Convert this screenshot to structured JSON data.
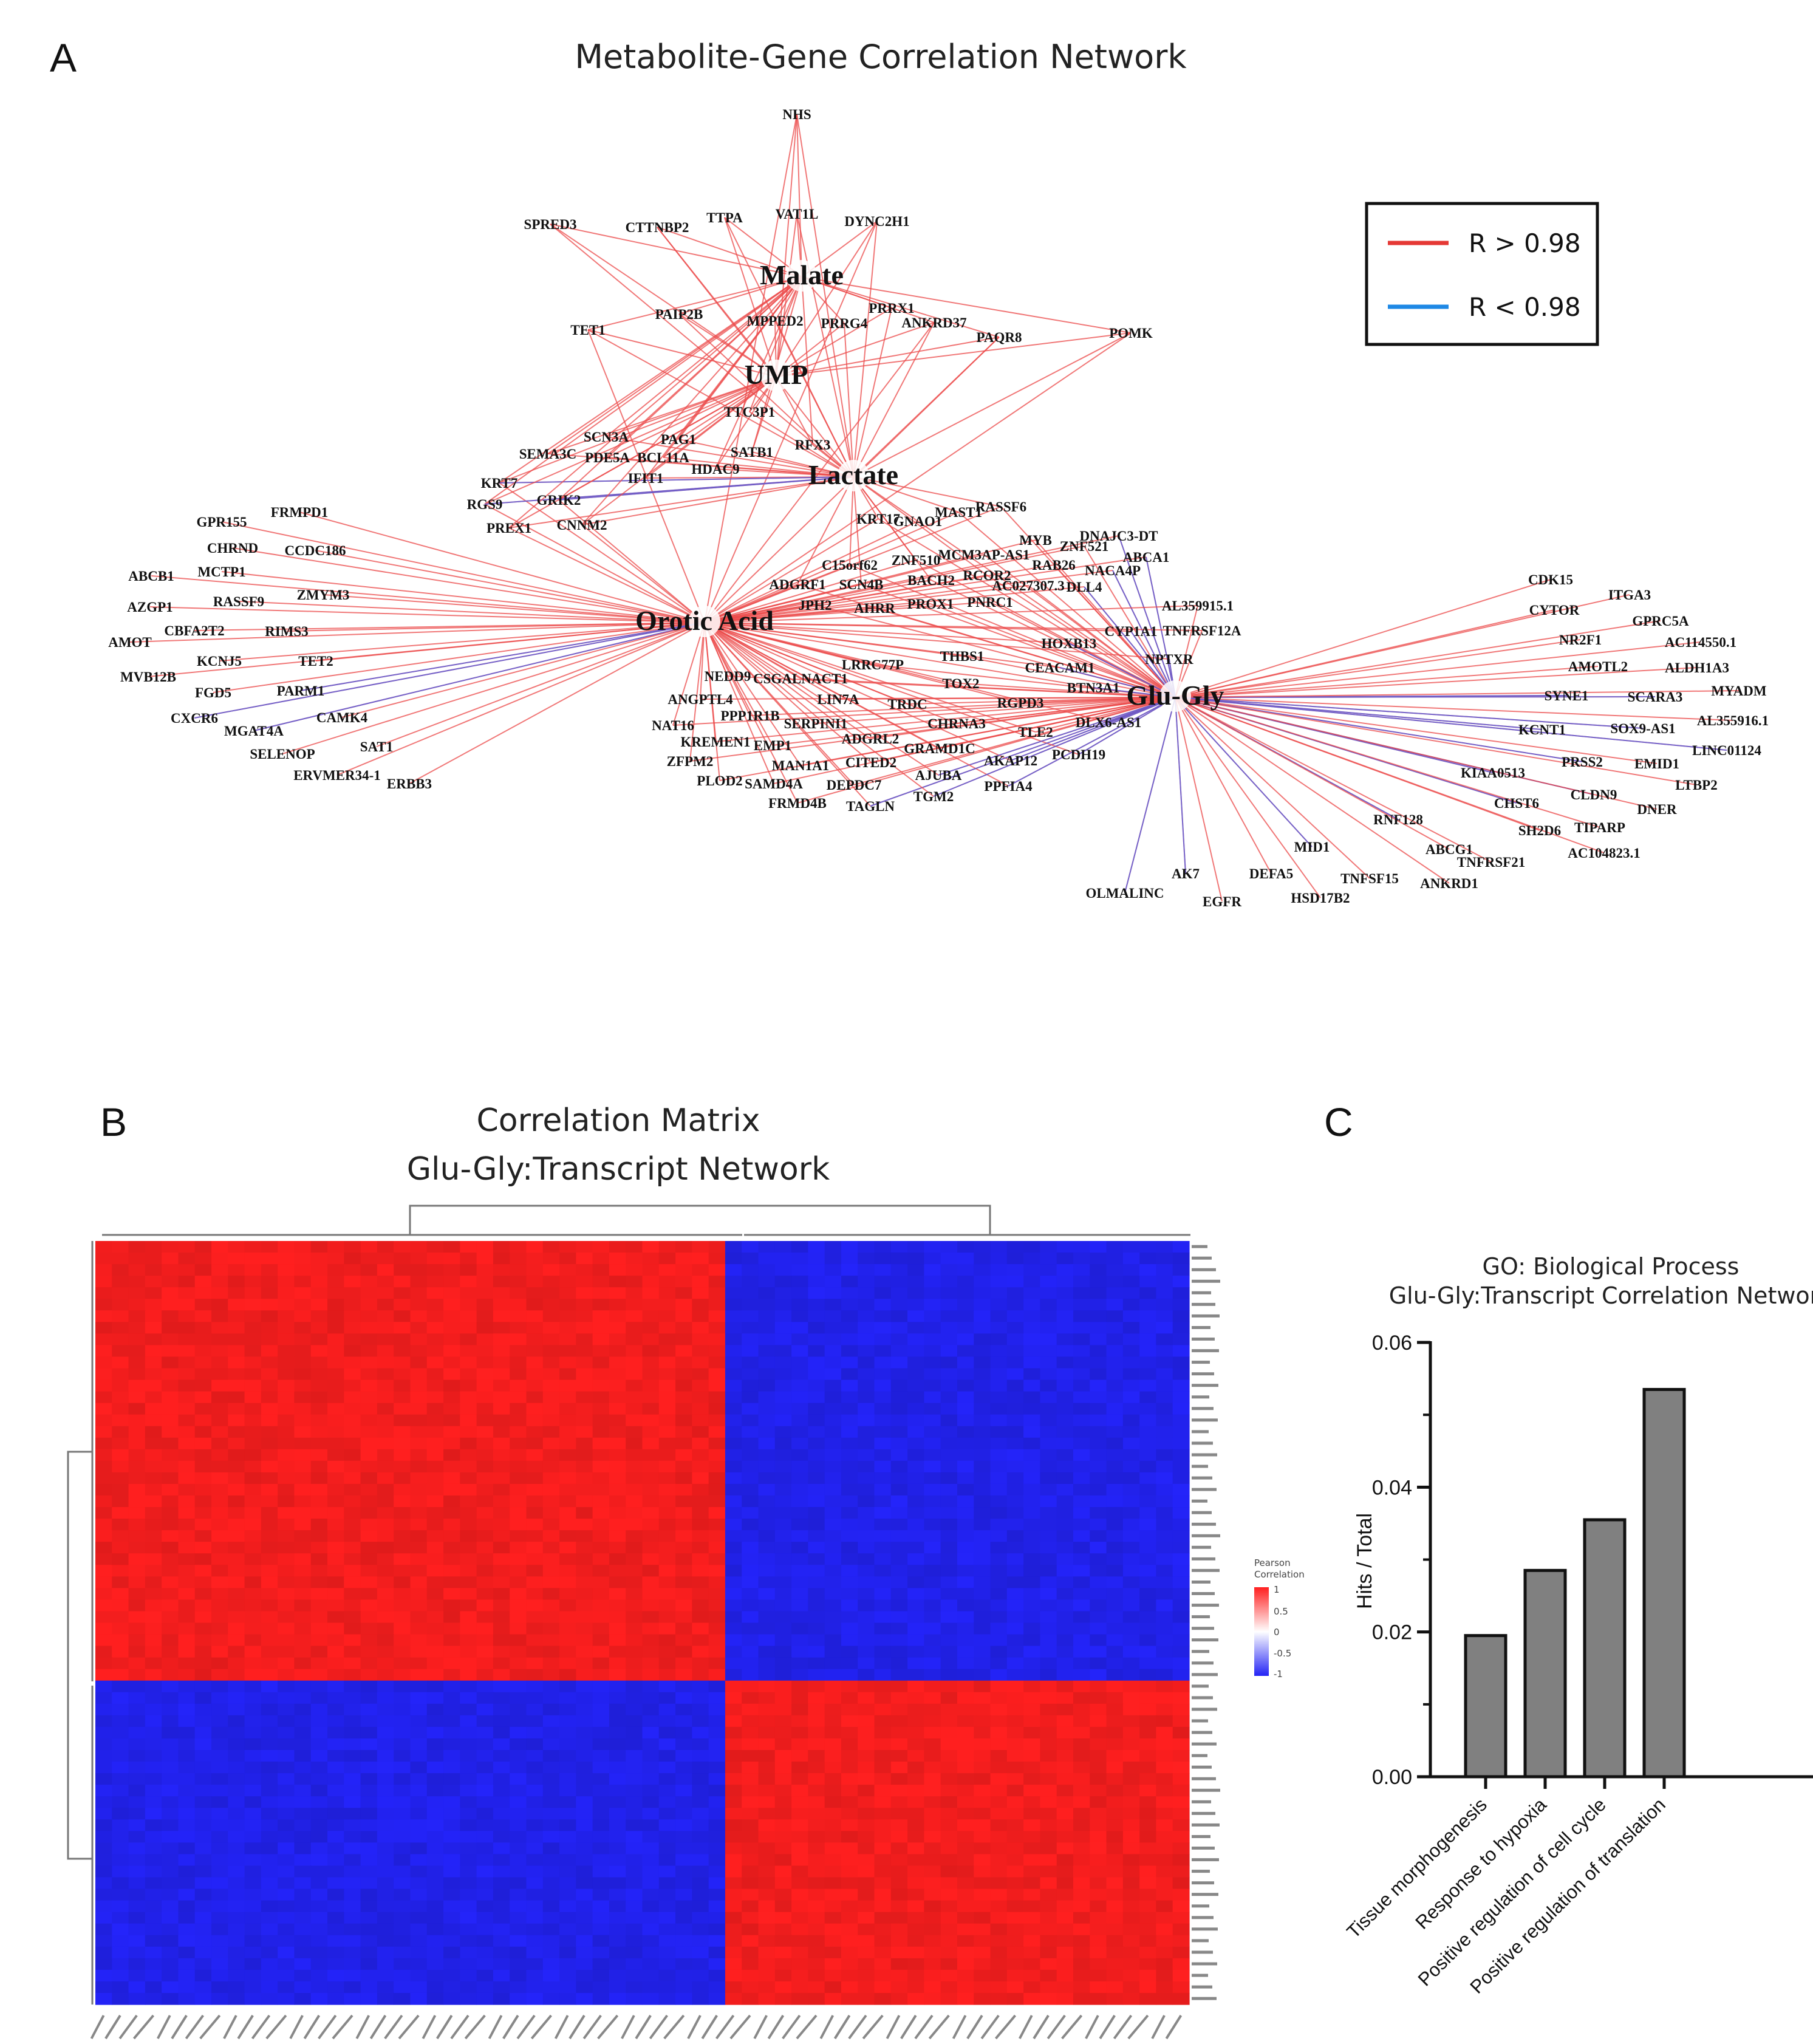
{
  "panels": {
    "a": "A",
    "b": "B",
    "c": "C"
  },
  "network": {
    "title": "Metabolite-Gene Correlation Network",
    "legend": {
      "pos_label": "R > 0.98",
      "neg_label": "R < 0.98",
      "pos_color": "#e53935",
      "neg_color": "#1e88e5"
    },
    "hubs": [
      "Malate",
      "UMP",
      "Lactate",
      "Orotic Acid",
      "Glu-Gly"
    ],
    "genes_top": [
      "NHS",
      "SPRED3",
      "CTTNBP2",
      "TTPA",
      "VAT1L",
      "DYNC2H1",
      "PAIP2B",
      "MPPED2",
      "PRRG4",
      "PRRX1",
      "ANKRD37",
      "PAQR8",
      "TET1",
      "POMK",
      "TTC3P1",
      "SCN3A",
      "PAG1",
      "SEMA3C",
      "PDE5A",
      "BCL11A",
      "SATB1",
      "RFX3",
      "HDAC9",
      "IFIT1",
      "KRT7",
      "RGS9",
      "GRIK2",
      "PREX1",
      "CNNM2"
    ],
    "genes_left": [
      "FRMPD1",
      "GPR155",
      "CHRND",
      "CCDC186",
      "ABCB1",
      "MCTP1",
      "AZGP1",
      "RASSF9",
      "ZMYM3",
      "AMOT",
      "CBFA2T2",
      "RIMS3",
      "MVB12B",
      "KCNJ5",
      "TET2",
      "FGD5",
      "PARM1",
      "CXCR6",
      "MGAT4A",
      "CAMK4",
      "SELENOP",
      "SAT1",
      "ERVMER34-1",
      "ERBB3"
    ],
    "genes_center": [
      "KRT17",
      "GNAO1",
      "MAST1",
      "RASSF6",
      "MYB",
      "ZNF521",
      "DNAJC3-DT",
      "ABCA1",
      "C15orf62",
      "ZNF510",
      "MCM3AP-AS1",
      "RAB26",
      "NACA4P",
      "ADGRF1",
      "SCN4B",
      "BACH2",
      "RCOR2",
      "AC027307.3",
      "DLL4",
      "JPH2",
      "AHRR",
      "PROX1",
      "PNRC1",
      "AL359915.1",
      "CYP1A1",
      "TNFRSF12A",
      "HOXB13",
      "NPTXR",
      "THBS1",
      "LRRC77P",
      "CEACAM1",
      "TOX2",
      "BTN3A1",
      "NEDD9",
      "CSGALNACT1",
      "ANGPTL4",
      "LIN7A",
      "TRDC",
      "RGPD3",
      "PPP1R1B",
      "NAT16",
      "SERPINI1",
      "CHRNA3",
      "TLE2",
      "DLX6-AS1",
      "KREMEN1",
      "EMP1",
      "ADGRL2",
      "GRAMD1C",
      "ZFPM2",
      "MAN1A1",
      "CITED2",
      "AKAP12",
      "PCDH19",
      "PLOD2",
      "SAMD4A",
      "DEPDC7",
      "AJUBA",
      "PPFIA4",
      "FRMD4B",
      "TAGLN",
      "TGM2"
    ],
    "genes_right": [
      "CDK15",
      "ITGA3",
      "CYTOR",
      "GPRC5A",
      "NR2F1",
      "AC114550.1",
      "AMOTL2",
      "ALDH1A3",
      "SYNE1",
      "SCARA3",
      "MYADM",
      "AL355916.1",
      "KCNT1",
      "SOX9-AS1",
      "LINC01124",
      "PRSS2",
      "EMID1",
      "LTBP2",
      "KIAA0513",
      "CLDN9",
      "CHST6",
      "DNER",
      "SH2D6",
      "TIPARP",
      "AC104823.1",
      "RNF128",
      "ABCG1",
      "TNFRSF21",
      "MID1",
      "TNFSF15",
      "ANKRD1",
      "AK7",
      "DEFA5",
      "HSD17B2",
      "OLMALINC",
      "EGFR"
    ]
  },
  "heatmap": {
    "title_line1": "Correlation Matrix",
    "title_line2": "Glu-Gly:Transcript Network",
    "colorbar_title_1": "Pearson",
    "colorbar_title_2": "Correlation",
    "colorbar_ticks": [
      "1",
      "0.5",
      "0",
      "-0.5",
      "-1"
    ],
    "colors": {
      "pos": "#ff1f1f",
      "neg": "#2323f5",
      "mid": "#ffffff"
    }
  },
  "chart_data": {
    "type": "bar",
    "title": "GO:  Biological Process",
    "subtitle": "Glu-Gly:Transcript Correlation Network",
    "categories": [
      "Tissue morphogenesis",
      "Response to hypoxia",
      "Positive regulation of cell cycle",
      "Positive regulation of translation"
    ],
    "values": [
      0.0195,
      0.0285,
      0.0355,
      0.0535
    ],
    "xlabel": "",
    "ylabel": "Hits / Total",
    "ylim": [
      0,
      0.06
    ],
    "yticks": [
      "0.00",
      "0.02",
      "0.04",
      "0.06"
    ],
    "bar_color": "#808080"
  }
}
